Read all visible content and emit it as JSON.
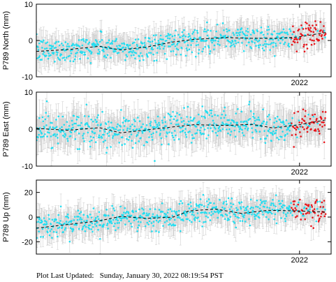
{
  "footer": {
    "label": "Plot Last Updated:",
    "timestamp": "Sunday, January 30, 2022 08:19:54 PST"
  },
  "colors": {
    "point": "#22ddf0",
    "recent_point": "#e8141a",
    "error_bar": "#c8c8c8",
    "trend": "#000000",
    "frame": "#000000"
  },
  "chart_data": [
    {
      "type": "scatter",
      "ylabel": "P789 North (mm)",
      "ylim": [
        -10,
        10
      ],
      "yticks": [
        -10,
        0,
        10
      ],
      "xlim": [
        2019.5,
        2022.3
      ],
      "xticks": [
        2022
      ],
      "xtick_labels": [
        "2022"
      ],
      "grid": false,
      "sigma": 2.0,
      "recent_start": 2021.92,
      "trend": [
        {
          "x": 2019.5,
          "y": -3.0
        },
        {
          "x": 2019.8,
          "y": -2.5
        },
        {
          "x": 2020.1,
          "y": -1.6
        },
        {
          "x": 2020.3,
          "y": -2.6
        },
        {
          "x": 2020.55,
          "y": -1.8
        },
        {
          "x": 2020.8,
          "y": -0.4
        },
        {
          "x": 2021.0,
          "y": 0.3
        },
        {
          "x": 2021.3,
          "y": 0.8
        },
        {
          "x": 2021.55,
          "y": 0.6
        },
        {
          "x": 2021.8,
          "y": 0.6
        },
        {
          "x": 2022.0,
          "y": 1.0
        },
        {
          "x": 2022.25,
          "y": 2.2
        }
      ]
    },
    {
      "type": "scatter",
      "ylabel": "P789 East (mm)",
      "ylim": [
        -10,
        10
      ],
      "yticks": [
        -10,
        0,
        10
      ],
      "xlim": [
        2019.5,
        2022.3
      ],
      "xticks": [
        2022
      ],
      "xtick_labels": [
        "2022"
      ],
      "grid": false,
      "sigma": 2.5,
      "recent_start": 2021.92,
      "trend": [
        {
          "x": 2019.5,
          "y": 0.2
        },
        {
          "x": 2019.8,
          "y": -0.3
        },
        {
          "x": 2020.1,
          "y": 0.4
        },
        {
          "x": 2020.3,
          "y": -1.0
        },
        {
          "x": 2020.55,
          "y": -0.2
        },
        {
          "x": 2020.8,
          "y": 0.6
        },
        {
          "x": 2021.0,
          "y": 1.2
        },
        {
          "x": 2021.3,
          "y": 1.0
        },
        {
          "x": 2021.55,
          "y": 1.3
        },
        {
          "x": 2021.75,
          "y": 0.3
        },
        {
          "x": 2022.0,
          "y": 1.2
        },
        {
          "x": 2022.25,
          "y": 2.5
        }
      ]
    },
    {
      "type": "scatter",
      "ylabel": "P789 Up (mm)",
      "ylim": [
        -30,
        30
      ],
      "yticks": [
        -20,
        0,
        20
      ],
      "xlim": [
        2019.5,
        2022.3
      ],
      "xticks": [
        2022
      ],
      "xtick_labels": [
        "2022"
      ],
      "grid": false,
      "sigma": 6.0,
      "recent_start": 2021.92,
      "trend": [
        {
          "x": 2019.5,
          "y": -9.0
        },
        {
          "x": 2019.8,
          "y": -6.0
        },
        {
          "x": 2020.1,
          "y": -3.0
        },
        {
          "x": 2020.3,
          "y": 0.5
        },
        {
          "x": 2020.55,
          "y": -1.0
        },
        {
          "x": 2020.8,
          "y": 0.0
        },
        {
          "x": 2020.95,
          "y": 5.0
        },
        {
          "x": 2021.2,
          "y": 6.5
        },
        {
          "x": 2021.45,
          "y": 3.0
        },
        {
          "x": 2021.7,
          "y": 5.5
        },
        {
          "x": 2022.0,
          "y": 5.0
        },
        {
          "x": 2022.25,
          "y": 4.0
        }
      ]
    }
  ]
}
